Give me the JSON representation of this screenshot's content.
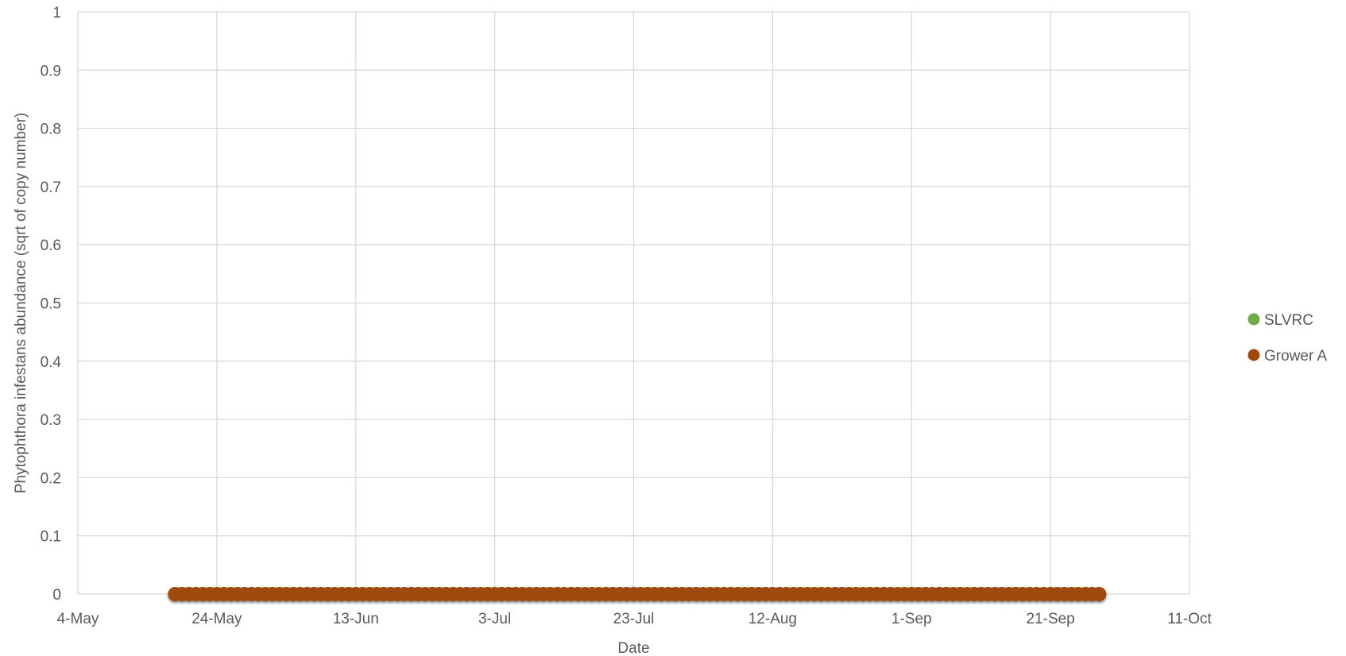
{
  "chart_data": {
    "type": "scatter",
    "xlabel": "Date",
    "ylabel": "Phytophthora infestans abundance (sqrt of copy number)",
    "x_ticks": [
      "4-May",
      "24-May",
      "13-Jun",
      "3-Jul",
      "23-Jul",
      "12-Aug",
      "1-Sep",
      "21-Sep",
      "11-Oct"
    ],
    "y_ticks": [
      "0",
      "0.1",
      "0.2",
      "0.3",
      "0.4",
      "0.5",
      "0.6",
      "0.7",
      "0.8",
      "0.9",
      "1"
    ],
    "ylim": [
      0,
      1
    ],
    "xlim": [
      "4-May",
      "11-Oct"
    ],
    "x_scale": "date",
    "grid": true,
    "legend_position": "right",
    "series": [
      {
        "name": "SLVRC",
        "color": "#70ad47",
        "x_range": [
          "18-May",
          "28-Sep"
        ],
        "x_step": "1 day",
        "y_value": 0,
        "points_visible": false
      },
      {
        "name": "Grower A",
        "color": "#9e480e",
        "x_range": [
          "18-May",
          "28-Sep"
        ],
        "x_step": "1 day",
        "y_value": 0
      }
    ]
  }
}
